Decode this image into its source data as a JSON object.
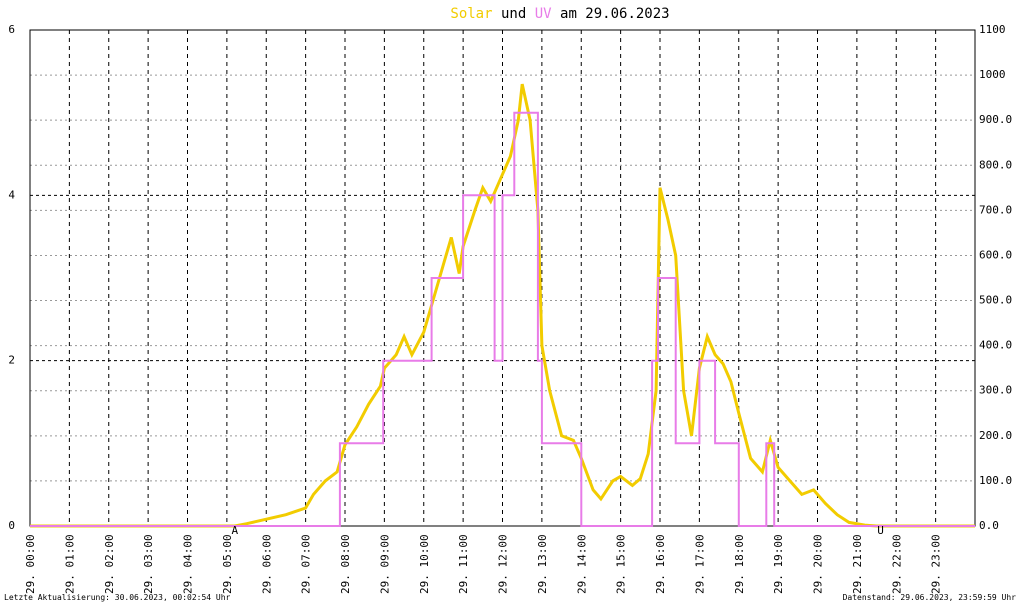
{
  "chart_data": {
    "type": "line",
    "title_parts": [
      "Solar",
      "und",
      "UV",
      "am 29.06.2023"
    ],
    "xlim": [
      0,
      24
    ],
    "xticks": [
      {
        "value": 0,
        "label": "29. 00:00"
      },
      {
        "value": 1,
        "label": "29. 01:00"
      },
      {
        "value": 2,
        "label": "29. 02:00"
      },
      {
        "value": 3,
        "label": "29. 03:00"
      },
      {
        "value": 4,
        "label": "29. 04:00"
      },
      {
        "value": 5,
        "label": "29. 05:00"
      },
      {
        "value": 6,
        "label": "29. 06:00"
      },
      {
        "value": 7,
        "label": "29. 07:00"
      },
      {
        "value": 8,
        "label": "29. 08:00"
      },
      {
        "value": 9,
        "label": "29. 09:00"
      },
      {
        "value": 10,
        "label": "29. 10:00"
      },
      {
        "value": 11,
        "label": "29. 11:00"
      },
      {
        "value": 12,
        "label": "29. 12:00"
      },
      {
        "value": 13,
        "label": "29. 13:00"
      },
      {
        "value": 14,
        "label": "29. 14:00"
      },
      {
        "value": 15,
        "label": "29. 15:00"
      },
      {
        "value": 16,
        "label": "29. 16:00"
      },
      {
        "value": 17,
        "label": "29. 17:00"
      },
      {
        "value": 18,
        "label": "29. 18:00"
      },
      {
        "value": 19,
        "label": "29. 19:00"
      },
      {
        "value": 20,
        "label": "29. 20:00"
      },
      {
        "value": 21,
        "label": "29. 21:00"
      },
      {
        "value": 22,
        "label": "29. 22:00"
      },
      {
        "value": 23,
        "label": "29. 23:00"
      }
    ],
    "ylim": [
      0,
      6
    ],
    "yticks": [
      0,
      2,
      4,
      6
    ],
    "y2lim": [
      0,
      1100
    ],
    "y2ticks": [
      {
        "value": 0,
        "label": "0.0"
      },
      {
        "value": 100,
        "label": "100.0"
      },
      {
        "value": 200,
        "label": "200.0"
      },
      {
        "value": 300,
        "label": "300.0"
      },
      {
        "value": 400,
        "label": "400.0"
      },
      {
        "value": 500,
        "label": "500.0"
      },
      {
        "value": 600,
        "label": "600.0"
      },
      {
        "value": 700,
        "label": "700.0"
      },
      {
        "value": 800,
        "label": "800.0"
      },
      {
        "value": 900,
        "label": "900.0"
      },
      1000,
      1100
    ],
    "grid": true,
    "series": [
      {
        "name": "Solar",
        "color": "#f2cc00",
        "axis": "y2",
        "x": [
          0,
          5.2,
          5.5,
          6.0,
          6.5,
          7.0,
          7.2,
          7.5,
          7.8,
          8.0,
          8.3,
          8.6,
          8.9,
          9.0,
          9.3,
          9.5,
          9.7,
          10.0,
          10.3,
          10.5,
          10.7,
          10.9,
          11.0,
          11.3,
          11.5,
          11.7,
          12.0,
          12.2,
          12.4,
          12.5,
          12.7,
          12.9,
          13.0,
          13.2,
          13.5,
          13.8,
          14.0,
          14.3,
          14.5,
          14.8,
          15.0,
          15.3,
          15.5,
          15.7,
          15.9,
          16.0,
          16.2,
          16.4,
          16.6,
          16.8,
          17.0,
          17.2,
          17.4,
          17.6,
          17.8,
          18.0,
          18.3,
          18.6,
          18.8,
          19.0,
          19.3,
          19.6,
          19.9,
          20.2,
          20.5,
          20.8,
          21.2,
          21.5,
          24
        ],
        "values": [
          0,
          0,
          5,
          15,
          25,
          40,
          70,
          100,
          120,
          180,
          220,
          270,
          310,
          350,
          380,
          420,
          380,
          430,
          520,
          580,
          640,
          560,
          620,
          700,
          750,
          720,
          780,
          820,
          900,
          980,
          900,
          700,
          400,
          300,
          200,
          190,
          150,
          80,
          60,
          100,
          110,
          90,
          105,
          160,
          300,
          750,
          680,
          600,
          300,
          200,
          350,
          420,
          380,
          360,
          320,
          250,
          150,
          120,
          190,
          130,
          100,
          70,
          80,
          50,
          25,
          8,
          2,
          0,
          0
        ]
      },
      {
        "name": "UV",
        "color": "#e87ce8",
        "axis": "y",
        "x": [
          0,
          7.87,
          7.87,
          8.97,
          8.97,
          10.2,
          10.2,
          11.0,
          11.0,
          11.8,
          11.8,
          12.0,
          12.0,
          12.3,
          12.3,
          12.9,
          12.9,
          13.0,
          13.0,
          14.0,
          14.0,
          15.8,
          15.8,
          15.95,
          15.95,
          16.4,
          16.4,
          17.0,
          17.0,
          17.4,
          17.4,
          18.0,
          18.0,
          18.7,
          18.7,
          18.9,
          18.9,
          24
        ],
        "values": [
          0,
          0,
          1,
          1,
          2,
          2,
          3,
          3,
          4,
          4,
          2,
          2,
          4,
          4,
          5,
          5,
          2,
          2,
          1,
          1,
          0,
          0,
          2,
          2,
          3,
          3,
          1,
          1,
          2,
          2,
          1,
          1,
          0,
          0,
          1,
          1,
          0,
          0
        ]
      }
    ],
    "annotations": [
      {
        "text": "A",
        "x": 5.2
      },
      {
        "text": "U",
        "x": 21.6
      }
    ],
    "footer_left": "Letzte Aktualisierung: 30.06.2023, 00:02:54 Uhr",
    "footer_right": "Datenstand: 29.06.2023, 23:59:59 Uhr"
  }
}
